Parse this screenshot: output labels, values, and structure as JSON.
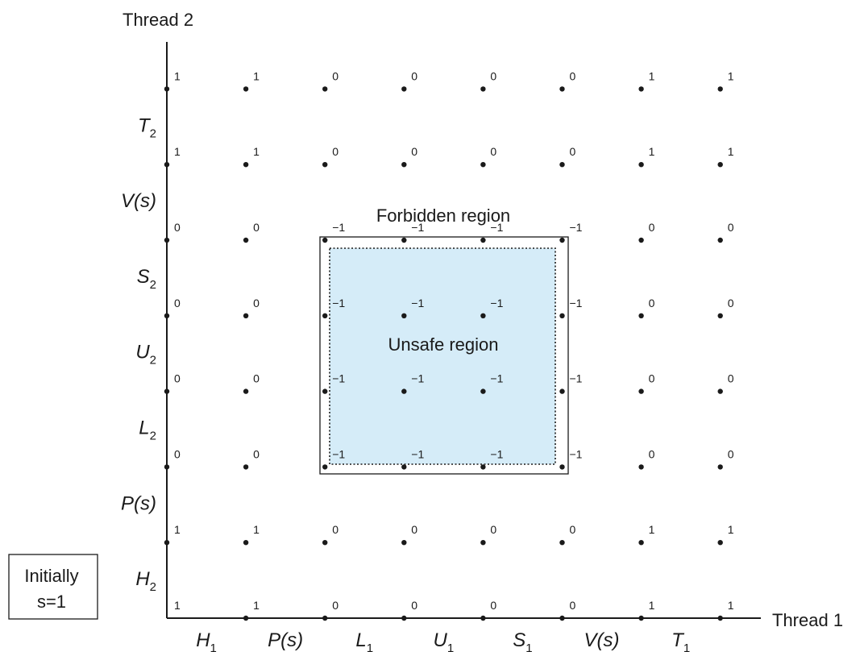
{
  "axes": {
    "x_title": "Thread 1",
    "y_title": "Thread 2"
  },
  "thread1_instructions": [
    {
      "base": "H",
      "sub": "1"
    },
    {
      "base": "P(s)",
      "sub": ""
    },
    {
      "base": "L",
      "sub": "1"
    },
    {
      "base": "U",
      "sub": "1"
    },
    {
      "base": "S",
      "sub": "1"
    },
    {
      "base": "V(s)",
      "sub": ""
    },
    {
      "base": "T",
      "sub": "1"
    }
  ],
  "thread2_instructions": [
    {
      "base": "H",
      "sub": "2"
    },
    {
      "base": "P(s)",
      "sub": ""
    },
    {
      "base": "L",
      "sub": "2"
    },
    {
      "base": "U",
      "sub": "2"
    },
    {
      "base": "S",
      "sub": "2"
    },
    {
      "base": "V(s)",
      "sub": ""
    },
    {
      "base": "T",
      "sub": "2"
    }
  ],
  "grid_values": [
    [
      "1",
      "1",
      "0",
      "0",
      "0",
      "0",
      "1",
      "1"
    ],
    [
      "1",
      "1",
      "0",
      "0",
      "0",
      "0",
      "1",
      "1"
    ],
    [
      "0",
      "0",
      "−1",
      "−1",
      "−1",
      "−1",
      "0",
      "0"
    ],
    [
      "0",
      "0",
      "−1",
      "−1",
      "−1",
      "−1",
      "0",
      "0"
    ],
    [
      "0",
      "0",
      "−1",
      "−1",
      "−1",
      "−1",
      "0",
      "0"
    ],
    [
      "0",
      "0",
      "−1",
      "−1",
      "−1",
      "−1",
      "0",
      "0"
    ],
    [
      "1",
      "1",
      "0",
      "0",
      "0",
      "0",
      "1",
      "1"
    ],
    [
      "1",
      "1",
      "0",
      "0",
      "0",
      "0",
      "1",
      "1"
    ]
  ],
  "forbidden_region_label": "Forbidden region",
  "unsafe_region_label": "Unsafe region",
  "initial_state": {
    "line1": "Initially",
    "line2": "s=1"
  },
  "colors": {
    "unsafe_fill": "#d5ecf8",
    "ink": "#1a1a1a"
  }
}
